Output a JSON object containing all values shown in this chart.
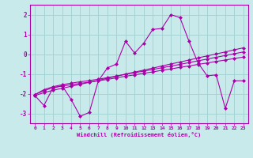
{
  "xlabel": "Windchill (Refroidissement éolien,°C)",
  "x": [
    0,
    1,
    2,
    3,
    4,
    5,
    6,
    7,
    8,
    9,
    10,
    11,
    12,
    13,
    14,
    15,
    16,
    17,
    18,
    19,
    20,
    21,
    22,
    23
  ],
  "line1": [
    -2.1,
    -2.6,
    -1.7,
    -1.6,
    -2.3,
    -3.15,
    -2.95,
    -1.35,
    -0.7,
    -0.5,
    0.65,
    0.05,
    0.55,
    1.25,
    1.3,
    2.0,
    1.85,
    0.65,
    -0.45,
    -1.1,
    -1.05,
    -2.75,
    -1.35,
    -1.35
  ],
  "line2": [
    -2.05,
    -1.85,
    -1.7,
    -1.62,
    -1.55,
    -1.48,
    -1.42,
    -1.35,
    -1.28,
    -1.2,
    -1.12,
    -1.05,
    -0.97,
    -0.9,
    -0.82,
    -0.75,
    -0.67,
    -0.6,
    -0.52,
    -0.45,
    -0.37,
    -0.3,
    -0.22,
    -0.15
  ],
  "line3": [
    -2.1,
    -1.95,
    -1.83,
    -1.73,
    -1.63,
    -1.53,
    -1.43,
    -1.33,
    -1.22,
    -1.12,
    -1.01,
    -0.91,
    -0.81,
    -0.71,
    -0.6,
    -0.5,
    -0.4,
    -0.3,
    -0.19,
    -0.09,
    0.01,
    0.11,
    0.22,
    0.32
  ],
  "line4": [
    -2.05,
    -1.8,
    -1.65,
    -1.55,
    -1.47,
    -1.4,
    -1.34,
    -1.27,
    -1.19,
    -1.11,
    -1.02,
    -0.94,
    -0.86,
    -0.78,
    -0.69,
    -0.61,
    -0.52,
    -0.43,
    -0.34,
    -0.25,
    -0.16,
    -0.07,
    0.02,
    0.11
  ],
  "line_color": "#aa00aa",
  "bg_color": "#c8eaea",
  "grid_color": "#a0d0d0",
  "ylim": [
    -3.5,
    2.5
  ],
  "xlim": [
    -0.5,
    23.5
  ],
  "yticks": [
    -3,
    -2,
    -1,
    0,
    1,
    2
  ],
  "xticks": [
    0,
    1,
    2,
    3,
    4,
    5,
    6,
    7,
    8,
    9,
    10,
    11,
    12,
    13,
    14,
    15,
    16,
    17,
    18,
    19,
    20,
    21,
    22,
    23
  ]
}
